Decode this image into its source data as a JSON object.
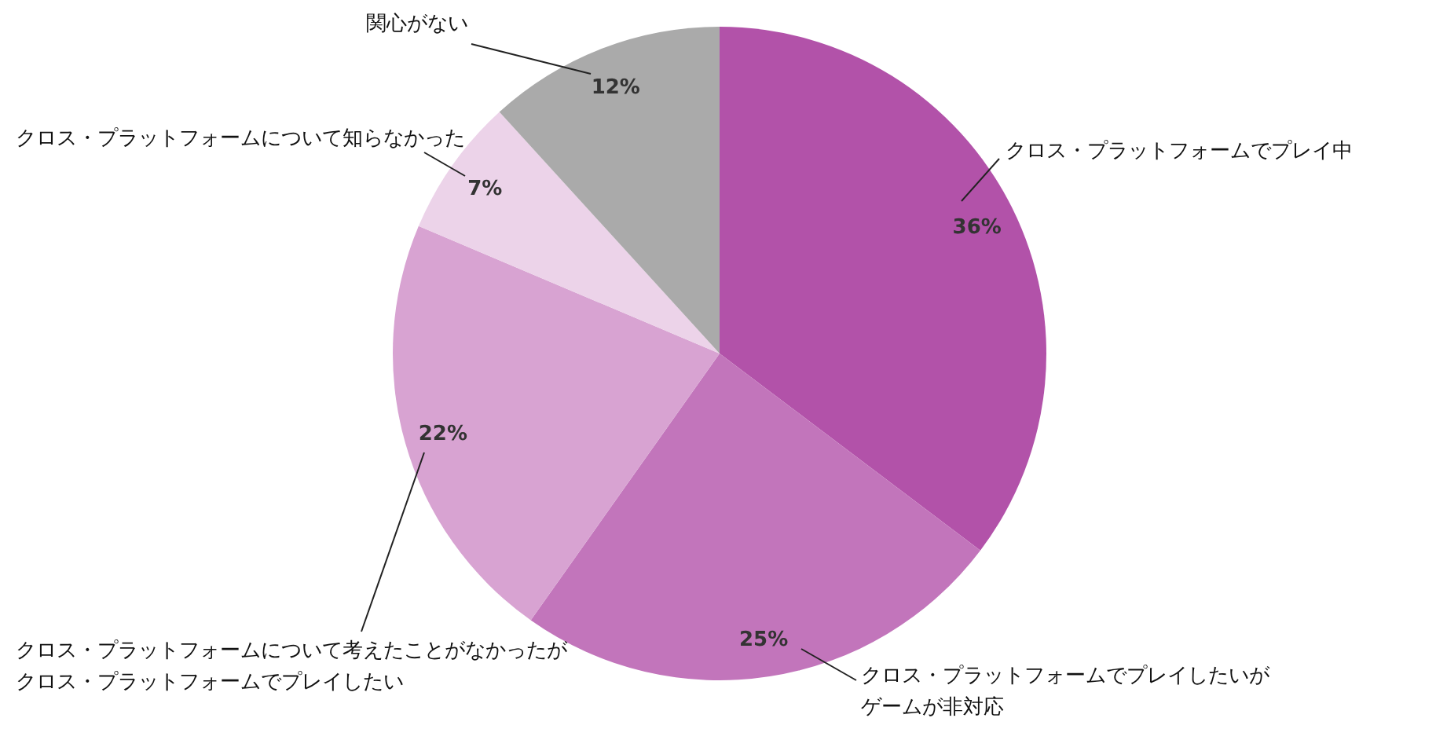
{
  "chart_data": {
    "type": "pie",
    "categories": [
      "クロス・プラットフォームでプレイ中",
      "クロス・プラットフォームでプレイしたいがゲームが非対応",
      "クロス・プラットフォームについて考えたことがなかったがクロス・プラットフォームでプレイしたい",
      "クロス・プラットフォームについて知らなかった",
      "関心がない"
    ],
    "values": [
      36,
      25,
      22,
      7,
      12
    ],
    "colors": [
      "#b252a9",
      "#c275bb",
      "#d8a3d2",
      "#ecd3e9",
      "#aaaaaa"
    ],
    "value_labels": [
      "36%",
      "25%",
      "22%",
      "7%",
      "12%"
    ]
  }
}
